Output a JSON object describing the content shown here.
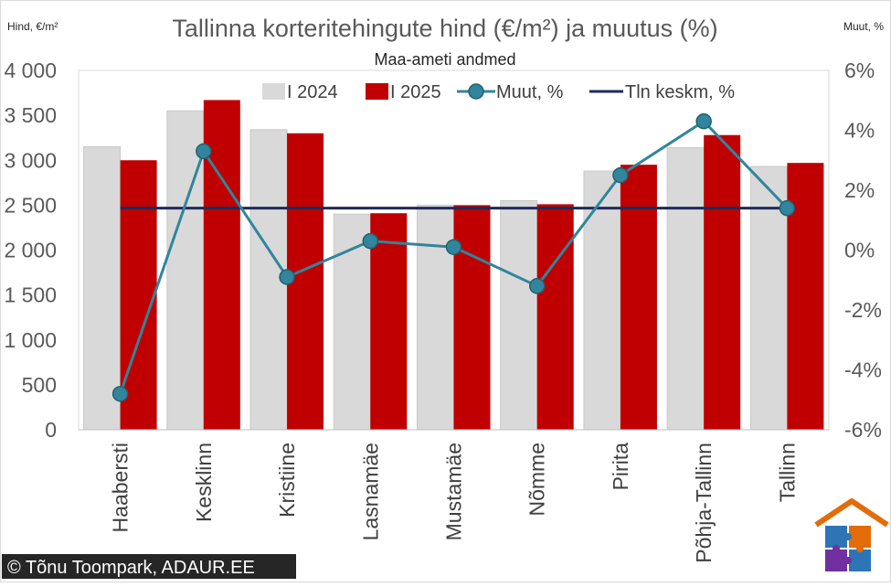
{
  "chart_data": {
    "type": "bar",
    "title": "Tallinna korteritehingute hind (€/m²) ja muutus (%)",
    "subtitle": "Maa-ameti andmed",
    "ylabel": "Hind, €/m²",
    "y2label": "Muut, %",
    "ylim": [
      0,
      4000
    ],
    "y2lim": [
      -6,
      6
    ],
    "yticks": [
      "0",
      "500",
      "1 000",
      "1 500",
      "2 000",
      "2 500",
      "3 000",
      "3 500",
      "4 000"
    ],
    "y2ticks": [
      "-6%",
      "-4%",
      "-2%",
      "0%",
      "2%",
      "4%",
      "6%"
    ],
    "categories": [
      "Haabersti",
      "Kesklinn",
      "Kristiine",
      "Lasnamäe",
      "Mustamäe",
      "Nõmme",
      "Pirita",
      "Põhja-Tallinn",
      "Tallinn"
    ],
    "series": [
      {
        "name": "I 2024",
        "type": "bar",
        "axis": "left",
        "color": "#d9d9d9",
        "values": [
          3150,
          3550,
          3340,
          2400,
          2500,
          2550,
          2880,
          3140,
          2930
        ]
      },
      {
        "name": "I 2025",
        "type": "bar",
        "axis": "left",
        "color": "#c00000",
        "values": [
          3000,
          3670,
          3300,
          2410,
          2500,
          2510,
          2950,
          3280,
          2970
        ]
      },
      {
        "name": "Muut, %",
        "type": "line",
        "axis": "right",
        "color": "#31859c",
        "values": [
          -4.8,
          3.3,
          -0.9,
          0.3,
          0.1,
          -1.2,
          2.5,
          4.3,
          1.4
        ]
      },
      {
        "name": "Tln keskm, %",
        "type": "line",
        "axis": "right",
        "color": "#1f2a5a",
        "values": [
          1.4,
          1.4,
          1.4,
          1.4,
          1.4,
          1.4,
          1.4,
          1.4,
          1.4
        ]
      }
    ],
    "legend_position": "top",
    "grid": false
  },
  "copyright": "© Tõnu Toompark, ADAUR.EE",
  "logo_icon": "house-puzzle-logo-icon"
}
